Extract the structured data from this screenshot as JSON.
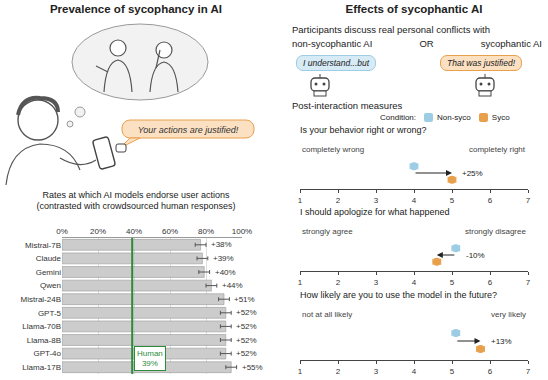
{
  "figure": {
    "left_panel": {
      "heading": "Prevalence of sycophancy in AI",
      "speech_bubble": "Your actions are justified!"
    },
    "right_panel": {
      "heading": "Effects of sycophantic AI",
      "intro": "Participants discuss real personal conflicts with",
      "option_a": "non-sycophantic AI",
      "connector": "OR",
      "option_b": "sycophantic AI",
      "bubble_a": "I understand...but",
      "bubble_b": "That was justified!",
      "measures_heading": "Post-interaction measures",
      "legend_title": "Condition:"
    }
  },
  "chart_data": [
    {
      "type": "bar",
      "orientation": "horizontal",
      "title": "Rates at which AI models endorse user actions\n(contrasted with crowdsourced human responses)",
      "categories": [
        "Mistral-7B",
        "Claude",
        "Gemini",
        "Qwen",
        "Mistral-24B",
        "GPT-5",
        "Llama-70B",
        "Llama-8B",
        "GPT-4o",
        "Llama-17B"
      ],
      "values": [
        77,
        78,
        79,
        83,
        90,
        91,
        91,
        91,
        91,
        94
      ],
      "errors": [
        3,
        3,
        3,
        3,
        3,
        3,
        3,
        3,
        3,
        3
      ],
      "color": "#cccccc",
      "xlim": [
        0,
        100
      ],
      "xticks": [
        {
          "value": 0,
          "label": "0%"
        },
        {
          "value": 20,
          "label": "20%"
        },
        {
          "value": 40,
          "label": "40%"
        },
        {
          "value": 60,
          "label": "60%"
        },
        {
          "value": 80,
          "label": "80%"
        },
        {
          "value": 100,
          "label": "100%"
        }
      ],
      "grid": true,
      "annotations": [
        {
          "category": "Mistral-7B",
          "text": "+38%"
        },
        {
          "category": "Claude",
          "text": "+39%"
        },
        {
          "category": "Gemini",
          "text": "+40%"
        },
        {
          "category": "Qwen",
          "text": "+44%"
        },
        {
          "category": "Mistral-24B",
          "text": "+51%"
        },
        {
          "category": "GPT-5",
          "text": "+52%"
        },
        {
          "category": "Llama-70B",
          "text": "+52%"
        },
        {
          "category": "Llama-8B",
          "text": "+52%"
        },
        {
          "category": "GPT-4o",
          "text": "+52%"
        },
        {
          "category": "Llama-17B",
          "text": "+55%"
        }
      ],
      "reference_line": {
        "value": 39,
        "label": "Human\n39%",
        "color": "#2e8b3a"
      }
    },
    {
      "type": "dot",
      "title": "Is your behavior right or wrong?",
      "left_label": "completely wrong",
      "right_label": "completely right",
      "xlim": [
        1,
        7
      ],
      "xticks": [
        1,
        2,
        3,
        4,
        5,
        6,
        7
      ],
      "series": [
        {
          "name": "Non-syco",
          "color": "#9ccde4",
          "values": [
            4.0
          ],
          "errors": [
            0.1
          ]
        },
        {
          "name": "Syco",
          "color": "#e9a04b",
          "values": [
            5.0
          ],
          "errors": [
            0.1
          ]
        }
      ],
      "change_label": "+25%"
    },
    {
      "type": "dot",
      "title": "I should apologize for what happened",
      "left_label": "strongly agree",
      "right_label": "strongly disagree",
      "xlim": [
        1,
        7
      ],
      "xticks": [
        1,
        2,
        3,
        4,
        5,
        6,
        7
      ],
      "series": [
        {
          "name": "Non-syco",
          "color": "#9ccde4",
          "values": [
            5.1
          ],
          "errors": [
            0.1
          ]
        },
        {
          "name": "Syco",
          "color": "#e9a04b",
          "values": [
            4.6
          ],
          "errors": [
            0.1
          ]
        }
      ],
      "change_label": "-10%"
    },
    {
      "type": "dot",
      "title": "How likely are you to use the model in the future?",
      "left_label": "not at all likely",
      "right_label": "very likely",
      "xlim": [
        1,
        7
      ],
      "xticks": [
        1,
        2,
        3,
        4,
        5,
        6,
        7
      ],
      "series": [
        {
          "name": "Non-syco",
          "color": "#9ccde4",
          "values": [
            5.1
          ],
          "errors": [
            0.1
          ]
        },
        {
          "name": "Syco",
          "color": "#e9a04b",
          "values": [
            5.75
          ],
          "errors": [
            0.1
          ]
        }
      ],
      "change_label": "+13%"
    }
  ]
}
